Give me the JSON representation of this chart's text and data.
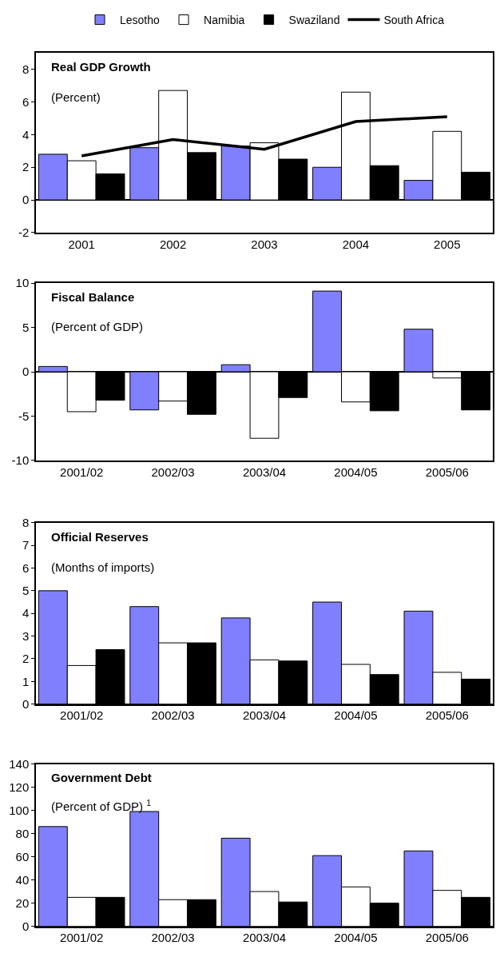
{
  "chart_data": [
    {
      "type": "bar",
      "title": "Real GDP Growth",
      "subtitle": "(Percent)",
      "legend": "top",
      "categories": [
        "2001",
        "2002",
        "2003",
        "2004",
        "2005"
      ],
      "ylim": [
        -2,
        9
      ],
      "yticks": [
        -2,
        0,
        2,
        4,
        6,
        8
      ],
      "series": [
        {
          "name": "Lesotho",
          "color": "#8080ff",
          "values": [
            2.8,
            3.2,
            3.3,
            2.0,
            1.2
          ]
        },
        {
          "name": "Namibia",
          "color": "#ffffff",
          "values": [
            2.4,
            6.7,
            3.5,
            6.6,
            4.2
          ]
        },
        {
          "name": "Swaziland",
          "color": "#000000",
          "values": [
            1.6,
            2.9,
            2.5,
            2.1,
            1.7
          ]
        },
        {
          "name": "South Africa",
          "color": "#000000",
          "type": "line",
          "values": [
            2.7,
            3.7,
            3.1,
            4.8,
            5.1
          ]
        }
      ]
    },
    {
      "type": "bar",
      "title": "Fiscal Balance",
      "subtitle": "(Percent of GDP)",
      "categories": [
        "2001/02",
        "2002/03",
        "2003/04",
        "2004/05",
        "2005/06"
      ],
      "ylim": [
        -10,
        10
      ],
      "yticks": [
        -10,
        -5,
        0,
        5,
        10
      ],
      "series": [
        {
          "color": "#8080ff",
          "values": [
            0.6,
            -4.3,
            0.8,
            9.1,
            4.8
          ]
        },
        {
          "color": "#ffffff",
          "values": [
            -4.5,
            -3.3,
            -7.5,
            -3.4,
            -0.7
          ]
        },
        {
          "color": "#000000",
          "values": [
            -3.2,
            -4.8,
            -2.9,
            -4.4,
            -4.3
          ]
        }
      ]
    },
    {
      "type": "bar",
      "title": "Official Reserves",
      "subtitle": "(Months of imports)",
      "categories": [
        "2001/02",
        "2002/03",
        "2003/04",
        "2004/05",
        "2005/06"
      ],
      "ylim": [
        0,
        8
      ],
      "yticks": [
        0,
        1,
        2,
        3,
        4,
        5,
        6,
        7,
        8
      ],
      "series": [
        {
          "color": "#8080ff",
          "values": [
            5.0,
            4.3,
            3.8,
            4.5,
            4.1
          ]
        },
        {
          "color": "#ffffff",
          "values": [
            1.7,
            2.7,
            1.95,
            1.75,
            1.4
          ]
        },
        {
          "color": "#000000",
          "values": [
            2.4,
            2.7,
            1.9,
            1.3,
            1.1
          ]
        }
      ]
    },
    {
      "type": "bar",
      "title": "Government Debt",
      "subtitle": "(Percent of GDP) $^{1}$",
      "categories": [
        "2001/02",
        "2002/03",
        "2003/04",
        "2004/05",
        "2005/06"
      ],
      "ylim": [
        0,
        140
      ],
      "yticks": [
        0,
        20,
        40,
        60,
        80,
        100,
        120,
        140
      ],
      "series": [
        {
          "color": "#8080ff",
          "values": [
            86,
            99,
            76,
            61,
            65
          ]
        },
        {
          "color": "#ffffff",
          "values": [
            25,
            23,
            30,
            34,
            31
          ]
        },
        {
          "color": "#000000",
          "values": [
            25,
            23,
            21,
            20,
            25
          ]
        }
      ]
    }
  ]
}
